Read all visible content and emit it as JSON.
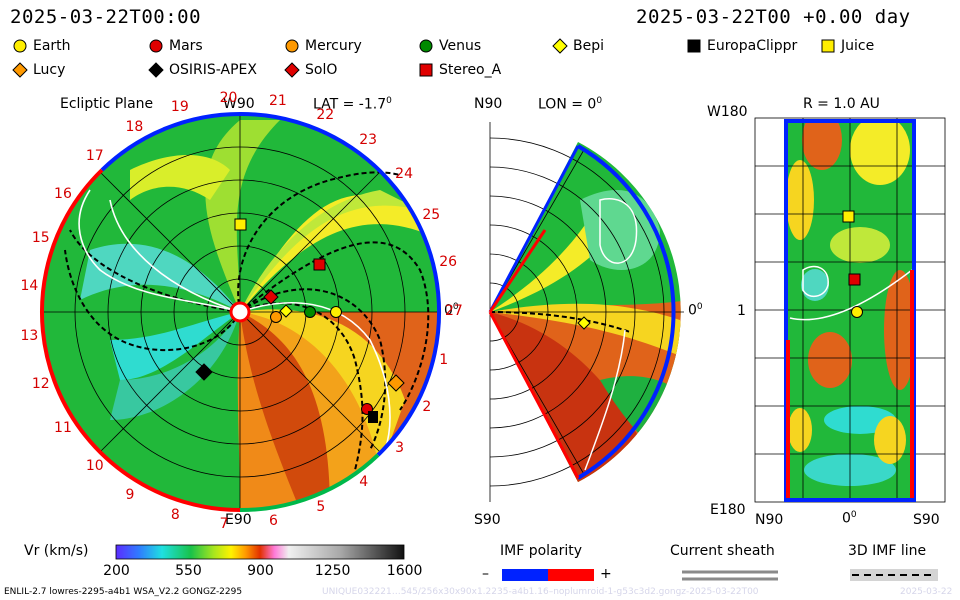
{
  "header": {
    "datetime_left": "2025-03-22T00:00",
    "datetime_right": "2025-03-22T00 +0.00 day"
  },
  "legend": [
    {
      "label": "Earth",
      "shape": "circle",
      "color": "#ffee00"
    },
    {
      "label": "Mars",
      "shape": "circle",
      "color": "#e00000"
    },
    {
      "label": "Mercury",
      "shape": "circle",
      "color": "#ff9900"
    },
    {
      "label": "Venus",
      "shape": "circle",
      "color": "#008a00"
    },
    {
      "label": "Bepi",
      "shape": "diamond",
      "color": "#ffff00"
    },
    {
      "label": "EuropaClippr",
      "shape": "square",
      "color": "#000000"
    },
    {
      "label": "Juice",
      "shape": "square",
      "color": "#ffee00"
    },
    {
      "label": "Lucy",
      "shape": "diamond",
      "color": "#ff9900"
    },
    {
      "label": "OSIRIS-APEX",
      "shape": "diamond",
      "color": "#000000"
    },
    {
      "label": "SolO",
      "shape": "diamond",
      "color": "#e00000"
    },
    {
      "label": "Stereo_A",
      "shape": "square",
      "color": "#e00000"
    }
  ],
  "ecliptic": {
    "title": "Ecliptic Plane",
    "top_label": "W90",
    "lat_label": "LAT = -1.7",
    "lat_degree_mark": "0",
    "right_label": "0",
    "right_degree_mark": "0",
    "bottom_label": "E90",
    "rotation_numbers": [
      "1",
      "2",
      "3",
      "4",
      "5",
      "6",
      "7",
      "8",
      "9",
      "10",
      "11",
      "12",
      "13",
      "14",
      "15",
      "16",
      "17",
      "18",
      "19",
      "20",
      "21",
      "22",
      "23",
      "24",
      "25",
      "26",
      "27"
    ]
  },
  "meridional": {
    "top_label": "N90",
    "lon_label": "LON = 0",
    "lon_degree_mark": "0",
    "bottom_label": "S90",
    "right_label": "0",
    "right_degree_mark": "0"
  },
  "radial": {
    "title": "R = 1.0 AU",
    "top_left_label": "W180",
    "middle_left_label": "1",
    "bottom_left_label": "E180",
    "bottom_labels": [
      "N90",
      "0",
      "S90"
    ],
    "bottom_degree_mark": "0"
  },
  "colorbar": {
    "label": "Vr (km/s)",
    "ticks": [
      "200",
      "550",
      "900",
      "1250",
      "1600"
    ],
    "min": 200,
    "max": 1600
  },
  "imf": {
    "title": "IMF polarity",
    "minus": "–",
    "plus": "+",
    "current_sheath": "Current sheath",
    "imf_line": "3D IMF line"
  },
  "footer": {
    "model_text": "ENLIL-2.7 lowres-2295-a4b1 WSA_V2.2 GONGZ-2295",
    "run_text": "UNIQUE032221…545/256x30x90x1.2235-a4b1.16–noplumroid-1-g53c3d2.gongz-2025-03-22T00",
    "right_text": "2025-03-22"
  },
  "colors": {
    "positive_polarity": "#ff0000",
    "negative_polarity": "#0022ff"
  }
}
